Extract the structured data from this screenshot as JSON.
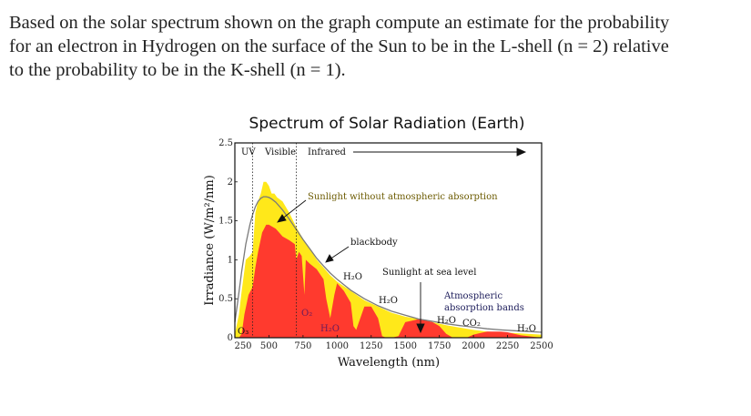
{
  "question": {
    "line1": "Based on the solar spectrum shown on the graph compute an estimate for the probability",
    "line2": "for an electron in Hydrogen on the surface of the Sun to be in the L-shell (n = 2) relative",
    "line3": "to the probability to be in the K-shell (n = 1)."
  },
  "chart_data": {
    "type": "area",
    "title": "Spectrum of Solar Radiation (Earth)",
    "xlabel": "Wavelength (nm)",
    "ylabel": "Irradiance (W/m²/nm)",
    "xlim": [
      250,
      2500
    ],
    "ylim": [
      0,
      2.5
    ],
    "x_ticks": [
      "250",
      "500",
      "750",
      "1000",
      "1250",
      "1500",
      "1750",
      "2000",
      "2250",
      "2500"
    ],
    "y_ticks": [
      "0",
      "0.5",
      "1",
      "1.5",
      "2",
      "2.5"
    ],
    "regions": [
      {
        "label": "UV",
        "from": 250,
        "to": 380
      },
      {
        "label": "Visible",
        "from": 380,
        "to": 700
      },
      {
        "label": "Infrared",
        "from": 700,
        "to": 2500
      }
    ],
    "series": [
      {
        "name": "Sunlight without atmospheric absorption",
        "color": "#ffe81a",
        "x": [
          250,
          280,
          300,
          330,
          360,
          380,
          400,
          420,
          440,
          460,
          480,
          500,
          520,
          540,
          560,
          600,
          650,
          700,
          750,
          800,
          850,
          900,
          950,
          1000,
          1100,
          1200,
          1300,
          1400,
          1500,
          1600,
          1700,
          1800,
          1900,
          2000,
          2100,
          2200,
          2300,
          2400,
          2500
        ],
        "values": [
          0.05,
          0.3,
          0.6,
          1.0,
          1.05,
          1.1,
          1.6,
          1.75,
          1.85,
          2.0,
          2.0,
          1.95,
          1.85,
          1.85,
          1.8,
          1.75,
          1.6,
          1.42,
          1.27,
          1.14,
          1.0,
          0.9,
          0.8,
          0.72,
          0.6,
          0.48,
          0.4,
          0.32,
          0.27,
          0.24,
          0.2,
          0.16,
          0.13,
          0.1,
          0.08,
          0.07,
          0.06,
          0.05,
          0.04
        ]
      },
      {
        "name": "Sunlight at sea level",
        "color": "#ff3a2e",
        "x": [
          280,
          300,
          320,
          350,
          380,
          400,
          420,
          450,
          480,
          500,
          550,
          600,
          650,
          690,
          700,
          720,
          740,
          760,
          770,
          800,
          850,
          900,
          920,
          950,
          980,
          1000,
          1050,
          1100,
          1120,
          1140,
          1180,
          1200,
          1250,
          1300,
          1330,
          1360,
          1400,
          1450,
          1500,
          1550,
          1600,
          1650,
          1700,
          1750,
          1800,
          1850,
          1900,
          1950,
          2000,
          2050,
          2100,
          2150,
          2200,
          2250,
          2300,
          2350,
          2400,
          2450,
          2500
        ],
        "values": [
          0,
          0.05,
          0.3,
          0.55,
          0.65,
          0.9,
          1.1,
          1.35,
          1.45,
          1.45,
          1.4,
          1.3,
          1.25,
          1.2,
          1.0,
          1.1,
          1.05,
          0.55,
          1.0,
          0.95,
          0.88,
          0.75,
          0.5,
          0.25,
          0.55,
          0.7,
          0.6,
          0.45,
          0.15,
          0.1,
          0.3,
          0.4,
          0.4,
          0.25,
          0.02,
          0.0,
          0.0,
          0.02,
          0.2,
          0.22,
          0.24,
          0.22,
          0.2,
          0.15,
          0.05,
          0.0,
          0.0,
          0.0,
          0.04,
          0.06,
          0.08,
          0.08,
          0.08,
          0.07,
          0.05,
          0.03,
          0.02,
          0.01,
          0.0
        ]
      },
      {
        "name": "blackbody",
        "color": "#7a7a7a",
        "x": [
          250,
          270,
          300,
          330,
          360,
          380,
          400,
          420,
          440,
          460,
          480,
          500,
          520,
          550,
          600,
          650,
          700,
          750,
          800,
          850,
          900,
          950,
          1000,
          1100,
          1200,
          1300,
          1400,
          1500,
          1600,
          1700,
          1800,
          1900,
          2000,
          2100,
          2200,
          2300,
          2400,
          2500
        ],
        "values": [
          0.2,
          0.45,
          0.85,
          1.2,
          1.45,
          1.58,
          1.68,
          1.75,
          1.79,
          1.81,
          1.81,
          1.8,
          1.78,
          1.74,
          1.64,
          1.52,
          1.39,
          1.26,
          1.14,
          1.02,
          0.92,
          0.83,
          0.75,
          0.61,
          0.5,
          0.41,
          0.34,
          0.29,
          0.24,
          0.21,
          0.18,
          0.155,
          0.135,
          0.115,
          0.1,
          0.09,
          0.08,
          0.07
        ]
      }
    ],
    "annotations": {
      "sun_no_atm": "Sunlight without atmospheric absorption",
      "blackbody": "blackbody",
      "sea_level": "Sunlight at sea level",
      "bands_1": "Atmospheric",
      "bands_2": "absorption bands",
      "o3": "O₃",
      "o2": "O₂",
      "h2o_a": "H₂O",
      "h2o_b": "H₂O",
      "h2o_c": "H₂O",
      "h2o_d": "H₂O",
      "h2o_e": "H₂O",
      "co2": "CO₂"
    }
  }
}
